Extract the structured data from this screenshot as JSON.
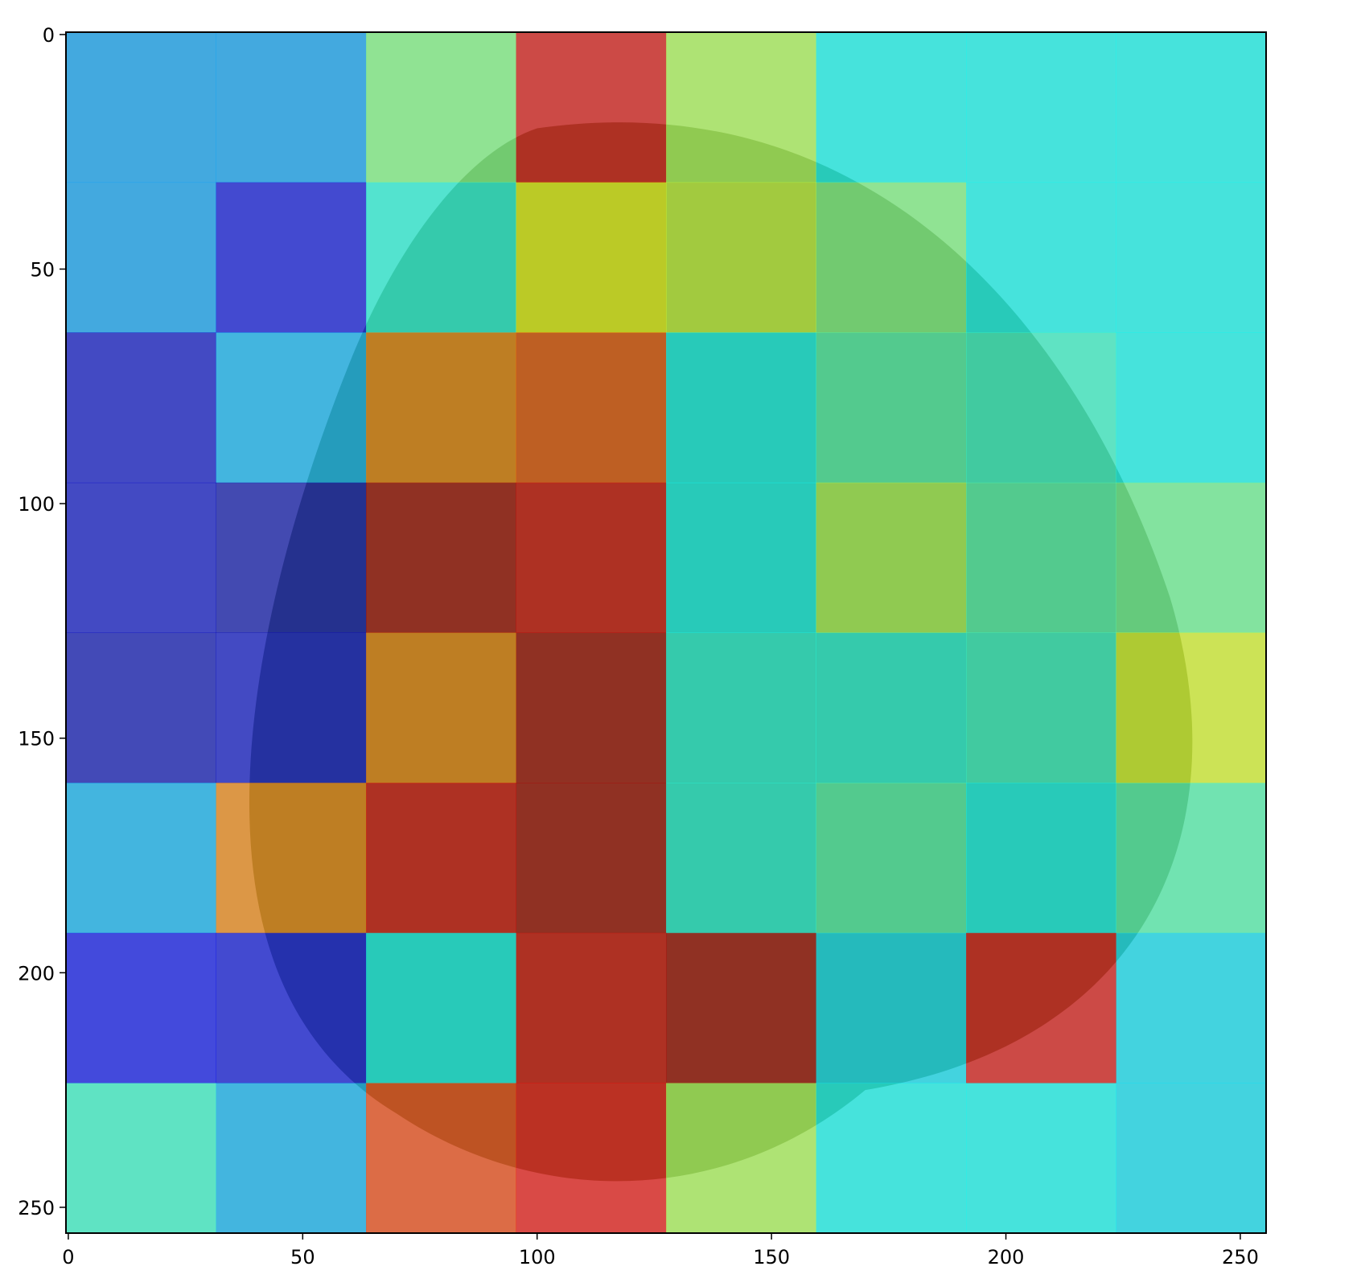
{
  "chart_data": {
    "type": "heatmap",
    "title": "",
    "xlabel": "",
    "ylabel": "",
    "xlim": [
      -0.5,
      255.5
    ],
    "ylim": [
      255.5,
      -0.5
    ],
    "y_inverted": true,
    "grid": false,
    "colormap": "jet",
    "overlay_alpha": 0.6,
    "underlay": "photo of a leaf",
    "cell_size": 32,
    "xticks": [
      "0",
      "50",
      "100",
      "150",
      "200",
      "250"
    ],
    "yticks": [
      "0",
      "50",
      "100",
      "150",
      "200",
      "250"
    ],
    "values": [
      [
        0.28,
        0.28,
        0.5,
        0.9,
        0.55,
        0.38,
        0.38,
        0.38
      ],
      [
        0.28,
        0.1,
        0.4,
        0.62,
        0.58,
        0.5,
        0.38,
        0.38
      ],
      [
        0.08,
        0.3,
        0.75,
        0.8,
        0.38,
        0.45,
        0.42,
        0.38
      ],
      [
        0.08,
        0.05,
        0.95,
        0.9,
        0.38,
        0.55,
        0.45,
        0.48
      ],
      [
        0.06,
        0.08,
        0.75,
        0.95,
        0.4,
        0.4,
        0.42,
        0.6
      ],
      [
        0.3,
        0.75,
        0.9,
        0.95,
        0.4,
        0.45,
        0.38,
        0.45
      ],
      [
        0.12,
        0.1,
        0.38,
        0.9,
        0.95,
        0.35,
        0.9,
        0.35
      ],
      [
        0.42,
        0.3,
        0.82,
        0.88,
        0.55,
        0.38,
        0.38,
        0.35
      ]
    ]
  }
}
